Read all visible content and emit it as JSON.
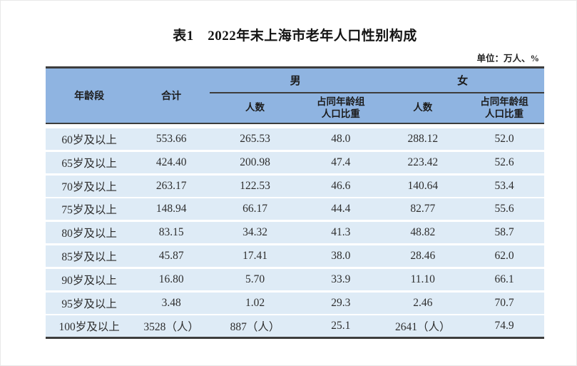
{
  "page": {
    "title": "表1　2022年末上海市老年人口性别构成",
    "unit_note": "单位：万人、%"
  },
  "colors": {
    "header_bg": "#8FB4E1",
    "row_bg": "#DEEBF6",
    "rule_line": "#3d3d3d"
  },
  "table": {
    "header": {
      "age_group": "年龄段",
      "total": "合计",
      "male": "男",
      "female": "女",
      "count": "人数",
      "share_line1": "占同年龄组",
      "share_line2": "人口比重"
    },
    "rows": [
      {
        "age": "60岁及以上",
        "total": "553.66",
        "male_count": "265.53",
        "male_share": "48.0",
        "female_count": "288.12",
        "female_share": "52.0"
      },
      {
        "age": "65岁及以上",
        "total": "424.40",
        "male_count": "200.98",
        "male_share": "47.4",
        "female_count": "223.42",
        "female_share": "52.6"
      },
      {
        "age": "70岁及以上",
        "total": "263.17",
        "male_count": "122.53",
        "male_share": "46.6",
        "female_count": "140.64",
        "female_share": "53.4"
      },
      {
        "age": "75岁及以上",
        "total": "148.94",
        "male_count": "66.17",
        "male_share": "44.4",
        "female_count": "82.77",
        "female_share": "55.6"
      },
      {
        "age": "80岁及以上",
        "total": "83.15",
        "male_count": "34.32",
        "male_share": "41.3",
        "female_count": "48.82",
        "female_share": "58.7"
      },
      {
        "age": "85岁及以上",
        "total": "45.87",
        "male_count": "17.41",
        "male_share": "38.0",
        "female_count": "28.46",
        "female_share": "62.0"
      },
      {
        "age": "90岁及以上",
        "total": "16.80",
        "male_count": "5.70",
        "male_share": "33.9",
        "female_count": "11.10",
        "female_share": "66.1"
      },
      {
        "age": "95岁及以上",
        "total": "3.48",
        "male_count": "1.02",
        "male_share": "29.3",
        "female_count": "2.46",
        "female_share": "70.7"
      },
      {
        "age": "100岁及以上",
        "total": "3528（人）",
        "male_count": "887（人）",
        "male_share": "25.1",
        "female_count": "2641（人）",
        "female_share": "74.9"
      }
    ]
  }
}
